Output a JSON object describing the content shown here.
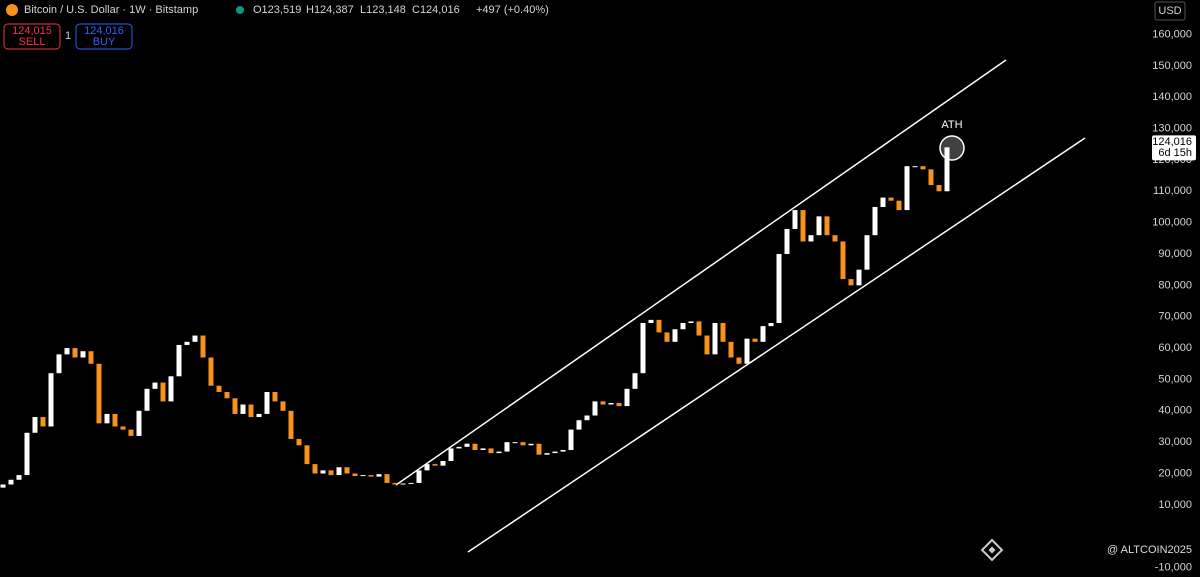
{
  "header": {
    "title": "Bitcoin / U.S. Dollar · 1W · Bitstamp",
    "ohlc": [
      "O123,519",
      "H124,387",
      "L123,148",
      "C124,016"
    ],
    "change": "+497 (+0.40%)",
    "sell_price": "124,015",
    "sell_label": "SELL",
    "spread": "1",
    "buy_price": "124,016",
    "buy_label": "BUY"
  },
  "chart_data": {
    "type": "candlestick",
    "start": 15500,
    "values": [
      16500,
      18000,
      19500,
      33000,
      38000,
      35000,
      52000,
      58000,
      60000,
      57000,
      59000,
      55000,
      36000,
      39000,
      35000,
      34000,
      32000,
      40000,
      47000,
      49000,
      43000,
      51000,
      61000,
      62000,
      64000,
      57000,
      48000,
      46000,
      44000,
      39000,
      42000,
      38000,
      39000,
      46000,
      43000,
      40000,
      31000,
      29000,
      23000,
      20000,
      21000,
      19500,
      22000,
      20000,
      19200,
      19500,
      19000,
      19800,
      17000,
      16500,
      16800,
      17000,
      21000,
      23000,
      22500,
      24000,
      28000,
      28500,
      29500,
      27500,
      28000,
      26500,
      27000,
      30000,
      30000,
      29000,
      29500,
      26000,
      26500,
      27000,
      27500,
      34000,
      37000,
      38500,
      43000,
      42000,
      42500,
      41500,
      47000,
      52000,
      68000,
      69000,
      65000,
      62000,
      66000,
      68000,
      68500,
      64000,
      58000,
      68000,
      62000,
      57000,
      55000,
      63000,
      62000,
      67000,
      68000,
      90000,
      98000,
      104000,
      94000,
      96000,
      102000,
      96000,
      94000,
      82000,
      80000,
      85000,
      96000,
      105000,
      108000,
      107000,
      104000,
      118000,
      118000,
      117000,
      112000,
      110000,
      124016
    ],
    "up_color": "#ffffff",
    "down_color": "#f7931a",
    "ylim": [
      -13000,
      171000
    ],
    "yticks": [
      {
        "value": 160000,
        "label": "160,000"
      },
      {
        "value": 150000,
        "label": "150,000"
      },
      {
        "value": 140000,
        "label": "140,000"
      },
      {
        "value": 130000,
        "label": "130,000"
      },
      {
        "value": 120000,
        "label": "120,000"
      },
      {
        "value": 110000,
        "label": "110,000"
      },
      {
        "value": 100000,
        "label": "100,000"
      },
      {
        "value": 90000,
        "label": "90,000"
      },
      {
        "value": 80000,
        "label": "80,000"
      },
      {
        "value": 70000,
        "label": "70,000"
      },
      {
        "value": 60000,
        "label": "60,000"
      },
      {
        "value": 50000,
        "label": "50,000"
      },
      {
        "value": 40000,
        "label": "40,000"
      },
      {
        "value": 30000,
        "label": "30,000"
      },
      {
        "value": 20000,
        "label": "20,000"
      },
      {
        "value": 10000,
        "label": "10,000"
      },
      {
        "value": -10000,
        "label": "-10,000"
      }
    ],
    "annotation": "ATH",
    "last_price_label": "124,016",
    "countdown": "6d 15h",
    "currency": "USD"
  },
  "watermark": "@ ALTCOIN2025"
}
